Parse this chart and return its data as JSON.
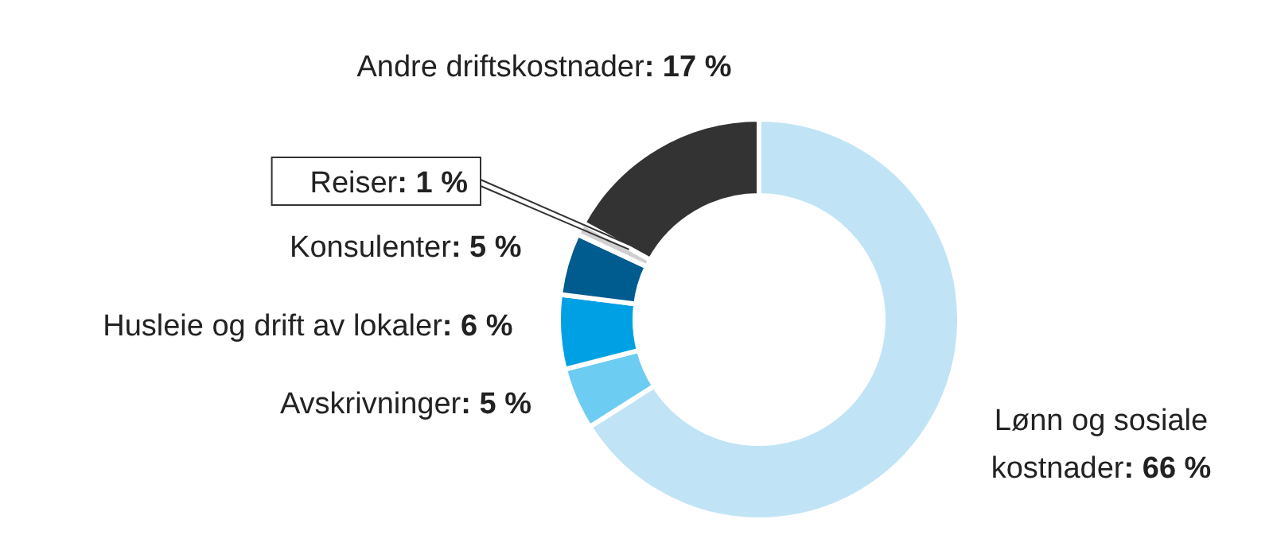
{
  "chart_data": {
    "type": "donut",
    "categories": [
      "Lønn og sosiale kostnader",
      "Avskrivninger",
      "Husleie og drift av lokaler",
      "Konsulenter",
      "Reiser",
      "Andre driftskostnader"
    ],
    "values": [
      66,
      5,
      6,
      5,
      1,
      17
    ],
    "value_labels": [
      ": 66 %",
      ": 5 %",
      ": 6 %",
      ": 5 %",
      ": 1 %",
      ": 17 %"
    ],
    "colors": [
      "#c0e4f6",
      "#6dccf2",
      "#00a0e4",
      "#005b8f",
      "#cfcfcf",
      "#333333"
    ],
    "legend": false
  }
}
